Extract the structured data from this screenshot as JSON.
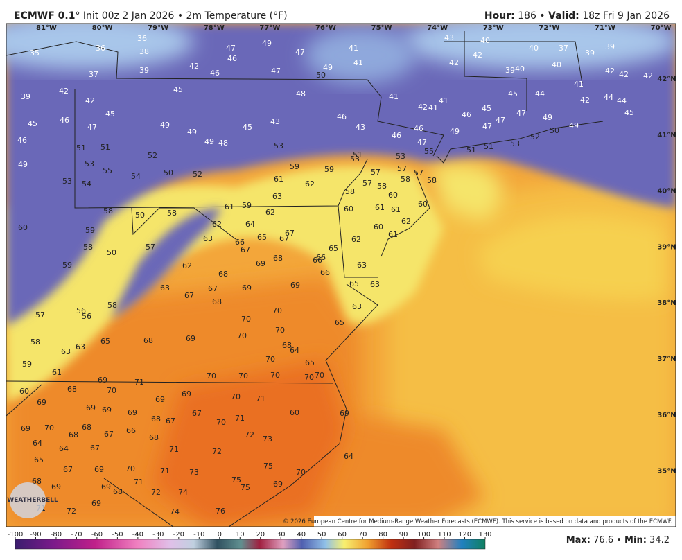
{
  "header": {
    "left": [
      {
        "text": "ECMWF 0.1",
        "bold": true
      },
      {
        "text": "° Init 00z 2 Jan 2026 • 2m Temperature (°F)",
        "bold": false
      }
    ],
    "right": [
      {
        "text": "Hour:",
        "bold": true
      },
      {
        "text": " 186 • ",
        "bold": false
      },
      {
        "text": "Valid:",
        "bold": true
      },
      {
        "text": " 18z Fri 9 Jan 2026",
        "bold": false
      }
    ]
  },
  "longitudes": [
    "81°W",
    "80°W",
    "79°W",
    "78°W",
    "77°W",
    "76°W",
    "75°W",
    "74°W",
    "73°W",
    "72°W",
    "71°W",
    "70°W"
  ],
  "latitudes": [
    "42°N",
    "41°N",
    "40°N",
    "39°N",
    "38°N",
    "37°N",
    "36°N",
    "35°N"
  ],
  "stations": [
    35,
    36,
    36,
    38,
    39,
    37,
    42,
    46,
    47,
    46,
    49,
    47,
    47,
    50,
    49,
    41,
    41,
    43,
    40,
    42,
    42,
    40,
    37,
    39,
    39,
    40,
    39,
    40,
    39,
    42,
    42,
    45,
    45,
    48,
    41,
    42,
    41,
    41,
    45,
    44,
    41,
    42,
    42,
    42,
    45,
    46,
    47,
    49,
    49,
    49,
    48,
    45,
    43,
    46,
    43,
    46,
    45,
    47,
    47,
    47,
    49,
    49,
    50,
    52,
    53,
    45,
    42,
    44,
    44,
    46,
    51,
    51,
    52,
    53,
    51,
    53,
    53,
    46,
    46,
    49,
    47,
    55,
    51,
    51,
    49,
    53,
    55,
    50,
    52,
    54,
    59,
    59,
    61,
    62,
    57,
    57,
    57,
    58,
    58,
    53,
    54,
    57,
    58,
    58,
    60,
    63,
    58,
    58,
    50,
    61,
    59,
    62,
    60,
    61,
    61,
    60,
    62,
    60,
    61,
    60,
    59,
    62,
    64,
    65,
    63,
    67,
    67,
    66,
    67,
    62,
    65,
    58,
    50,
    57,
    68,
    69,
    66,
    66,
    66,
    63,
    59,
    62,
    68,
    63,
    67,
    67,
    69,
    69,
    65,
    63,
    68,
    56,
    58,
    57,
    56,
    70,
    70,
    65,
    63,
    70,
    70,
    58,
    63,
    63,
    65,
    68,
    69,
    68,
    64,
    70,
    65,
    59,
    61,
    69,
    71,
    70,
    70,
    70,
    70,
    70,
    60,
    68,
    70,
    69,
    69,
    69,
    70,
    71,
    69,
    69,
    69,
    68,
    67,
    67,
    70,
    71,
    60,
    69,
    69,
    70,
    68,
    68,
    67,
    66,
    68,
    72,
    73,
    64,
    64,
    67,
    71,
    72,
    65,
    64,
    67,
    69,
    70,
    71,
    73,
    75,
    75,
    68,
    69,
    69,
    68,
    71,
    72,
    74,
    75,
    69,
    70,
    71,
    72,
    69,
    74,
    76
  ],
  "copyright": "© 2026 European Centre for Medium-Range Weather Forecasts (ECMWF). This service is based on data and products of the ECMWF.",
  "logo": "WEATHERBELL",
  "colorbar": {
    "ticks": [
      -100,
      -90,
      -80,
      -70,
      -60,
      -50,
      -40,
      -30,
      -20,
      -10,
      0,
      10,
      20,
      30,
      40,
      50,
      60,
      70,
      80,
      90,
      100,
      110,
      120,
      130
    ],
    "lim": [
      -100,
      130
    ]
  },
  "stats": {
    "max_label": "Max:",
    "max": 76.6,
    "sep": "•",
    "min_label": "Min:",
    "min": 34.2
  }
}
